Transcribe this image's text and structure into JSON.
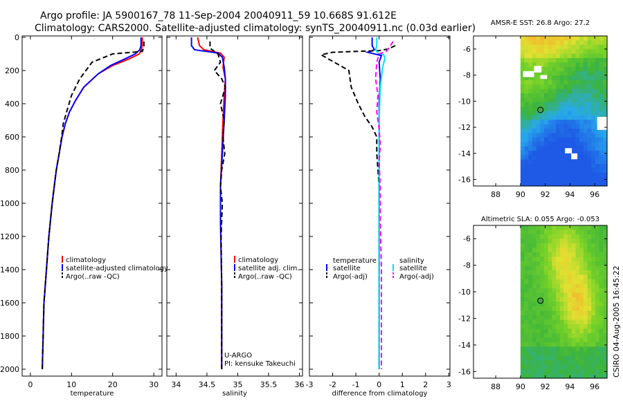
{
  "header": {
    "line1": "Argo profile: JA 5900167_78 11-Sep-2004 20040911_59 10.668S 91.612E",
    "line2": "Climatology: CARS2000. Satellite-adjusted climatology: synTS_20040911.nc (0.03d earlier)"
  },
  "side_text": "CSIRO 04-Aug-2005 16:45:22",
  "colors": {
    "climatology": "#ff0000",
    "satellite": "#0000ff",
    "argo": "#000000",
    "sat_diff_s": "#00e5ee",
    "argo_diff_s": "#ff00ff"
  },
  "chart_data": [
    {
      "type": "line",
      "id": "temperature",
      "xlabel": "temperature",
      "ylabel": "",
      "xlim": [
        -2,
        32
      ],
      "ylim": [
        2050,
        0
      ],
      "xticks": [
        0,
        10,
        20,
        30
      ],
      "yticks": [
        0,
        200,
        400,
        600,
        800,
        1000,
        1200,
        1400,
        1600,
        1800,
        2000
      ],
      "legend": [
        "climatology",
        "satellite-adjusted climatology",
        "Argo(..raw -QC)"
      ],
      "series": [
        {
          "name": "climatology",
          "style": "solid",
          "x": [
            27.2,
            27.2,
            27.0,
            26.5,
            24.0,
            20.0,
            16.5,
            13.0,
            11.0,
            9.5,
            8.5,
            7.7,
            7.0,
            6.3,
            5.8,
            5.3,
            4.9,
            4.5,
            4.2,
            3.9,
            3.6,
            3.3,
            3.1,
            2.9
          ],
          "y": [
            0,
            50,
            75,
            100,
            130,
            170,
            220,
            300,
            380,
            450,
            520,
            600,
            700,
            800,
            900,
            1000,
            1100,
            1200,
            1300,
            1400,
            1500,
            1600,
            1800,
            2000
          ]
        },
        {
          "name": "satellite-adjusted climatology",
          "style": "solid",
          "x": [
            26.9,
            26.9,
            26.6,
            25.5,
            23.0,
            19.5,
            16.5,
            13.0,
            11.0,
            9.5,
            8.5,
            7.7,
            7.0,
            6.3,
            5.8,
            5.3,
            4.9,
            4.5,
            4.2,
            3.9,
            3.6,
            3.3,
            3.1,
            2.9
          ],
          "y": [
            0,
            50,
            75,
            100,
            130,
            170,
            220,
            300,
            380,
            450,
            520,
            600,
            700,
            800,
            900,
            1000,
            1100,
            1200,
            1300,
            1400,
            1500,
            1600,
            1800,
            2000
          ]
        },
        {
          "name": "Argo(..raw -QC)",
          "style": "dashed",
          "x": [
            27.6,
            27.6,
            27.2,
            20.0,
            15.0,
            12.0,
            10.0,
            8.8,
            8.0,
            7.6,
            7.0,
            6.3,
            5.8,
            5.3,
            4.9,
            4.5,
            4.2,
            3.9,
            3.6,
            3.3,
            3.1,
            2.9
          ],
          "y": [
            25,
            60,
            85,
            100,
            150,
            250,
            350,
            450,
            520,
            600,
            700,
            800,
            900,
            1000,
            1100,
            1200,
            1300,
            1400,
            1500,
            1600,
            1800,
            2000
          ]
        }
      ]
    },
    {
      "type": "line",
      "id": "salinity",
      "xlabel": "salinity",
      "ylabel": "",
      "xlim": [
        33.85,
        36.05
      ],
      "ylim": [
        2050,
        0
      ],
      "xticks": [
        34,
        34.5,
        35,
        35.5,
        36
      ],
      "xtick_labels": [
        "34",
        "34.5",
        "35",
        "35.5",
        "36"
      ],
      "legend": [
        "climatology",
        "satellite adj. clim.",
        "Argo(..raw -QC)"
      ],
      "annotations": [
        "U-ARGO",
        "PI: kensuke Takeuchi"
      ],
      "series": [
        {
          "name": "climatology",
          "style": "solid",
          "x": [
            34.35,
            34.38,
            34.45,
            34.72,
            34.78,
            34.76,
            34.8,
            34.78,
            34.76,
            34.74,
            34.72,
            34.72,
            34.73,
            34.74,
            34.74,
            34.74
          ],
          "y": [
            0,
            50,
            75,
            95,
            120,
            180,
            250,
            350,
            500,
            700,
            900,
            1100,
            1300,
            1500,
            1800,
            2000
          ]
        },
        {
          "name": "satellite adj. clim.",
          "style": "solid",
          "x": [
            34.25,
            34.25,
            34.3,
            34.68,
            34.75,
            34.78,
            34.8,
            34.8,
            34.78,
            34.75,
            34.72,
            34.72,
            34.73,
            34.74,
            34.74,
            34.74
          ],
          "y": [
            0,
            50,
            75,
            95,
            120,
            180,
            250,
            350,
            500,
            700,
            900,
            1100,
            1300,
            1500,
            1800,
            2000
          ]
        },
        {
          "name": "Argo(..raw -QC)",
          "style": "dashed",
          "x": [
            34.55,
            34.55,
            34.62,
            34.68,
            34.72,
            34.62,
            34.74,
            34.8,
            34.72,
            34.78,
            34.76,
            34.79,
            34.74,
            34.72,
            34.75,
            34.73,
            34.74,
            34.74
          ],
          "y": [
            25,
            65,
            85,
            100,
            150,
            200,
            250,
            300,
            400,
            500,
            600,
            700,
            800,
            900,
            1000,
            1200,
            1500,
            2000
          ]
        }
      ]
    },
    {
      "type": "line",
      "id": "difference",
      "xlabel": "difference from climatology",
      "ylabel": "",
      "xlim": [
        -3,
        3.05
      ],
      "ylim": [
        2050,
        0
      ],
      "xticks": [
        -3,
        -2,
        -1,
        0,
        1,
        2,
        3
      ],
      "legend": [
        "temperature",
        "satellite",
        "Argo(-adj)",
        "salinity",
        "satellite",
        "Argo(-adj)"
      ],
      "series": [
        {
          "name": "temperature satellite",
          "style": "solid",
          "x": [
            -0.3,
            -0.3,
            -0.2,
            -0.5,
            0.1,
            0.0,
            0.05,
            0.0,
            0.0,
            0.0
          ],
          "y": [
            0,
            50,
            75,
            90,
            110,
            150,
            250,
            400,
            800,
            2000
          ]
        },
        {
          "name": "temperature Argo(-adj)",
          "style": "dashed",
          "x": [
            0.7,
            0.4,
            0.0,
            -1.0,
            -2.0,
            -2.5,
            -1.3,
            -1.2,
            -0.9,
            -0.6,
            -0.5,
            -0.3,
            -0.1,
            -0.1,
            0.0,
            0.0,
            0.0,
            0.0
          ],
          "y": [
            50,
            70,
            80,
            85,
            90,
            105,
            200,
            300,
            400,
            480,
            500,
            540,
            600,
            700,
            900,
            1100,
            1500,
            2000
          ]
        },
        {
          "name": "salinity satellite",
          "style": "solid",
          "x": [
            -0.1,
            -0.1,
            -0.15,
            -0.05,
            0.2,
            0.25,
            0.15,
            0.05,
            0.0,
            0.0,
            0.0,
            0.0
          ],
          "y": [
            0,
            50,
            75,
            95,
            105,
            130,
            180,
            300,
            500,
            900,
            1400,
            2000
          ]
        },
        {
          "name": "salinity Argo(-adj)",
          "style": "dashed",
          "x": [
            0.6,
            0.45,
            0.3,
            0.0,
            -0.1,
            -0.15,
            -0.05,
            -0.1,
            0.0,
            0.05,
            0.0,
            0.05,
            0.05,
            0.1,
            0.1,
            0.1
          ],
          "y": [
            25,
            60,
            85,
            100,
            150,
            250,
            350,
            450,
            550,
            650,
            750,
            900,
            1100,
            1400,
            1700,
            2000
          ]
        }
      ]
    },
    {
      "type": "heatmap",
      "id": "sst-map",
      "title": "AMSR-E SST: 26.8 Argo: 27.2",
      "xlim": [
        86.2,
        97.0
      ],
      "ylim": [
        -16.5,
        -5.0
      ],
      "xticks": [
        88,
        90,
        92,
        94,
        96
      ],
      "yticks": [
        -6,
        -8,
        -10,
        -12,
        -14,
        -16
      ],
      "argo_position": {
        "lon": 91.612,
        "lat": -10.668
      }
    },
    {
      "type": "heatmap",
      "id": "sla-map",
      "title": "Altimetric SLA: 0.055 Argo: -0.053",
      "xlim": [
        86.2,
        97.0
      ],
      "ylim": [
        -16.5,
        -5.0
      ],
      "xticks": [
        88,
        90,
        92,
        94,
        96
      ],
      "yticks": [
        -6,
        -8,
        -10,
        -12,
        -14,
        -16
      ],
      "argo_position": {
        "lon": 91.612,
        "lat": -10.668
      }
    }
  ]
}
